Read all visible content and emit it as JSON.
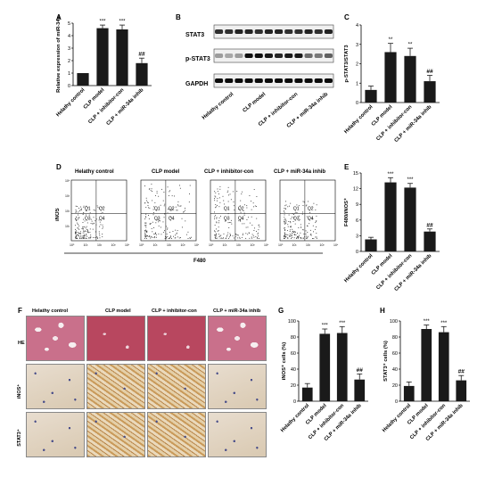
{
  "panel_letters": {
    "A": "A",
    "B": "B",
    "C": "C",
    "D": "D",
    "E": "E",
    "F": "F",
    "G": "G",
    "H": "H"
  },
  "groups": [
    "Helathy control",
    "CLP model",
    "CLP + inhibitor-con",
    "CLP + miR-34a inhib"
  ],
  "western_blot": {
    "bands": [
      "STAT3",
      "p-STAT3",
      "GAPDH"
    ],
    "lanes": 12
  },
  "flow": {
    "titles": [
      "Helathy control",
      "CLP model",
      "CLP + inhibitor-con",
      "CLP + miR-34a inhib"
    ],
    "y_label": "iNOS",
    "x_label": "F480",
    "quadrants": [
      "Q1",
      "Q2",
      "Q3",
      "Q4"
    ],
    "ticks": [
      "10⁰",
      "10¹",
      "10²",
      "10³",
      "10⁴"
    ]
  },
  "histology": {
    "col_titles": [
      "Helathy control",
      "CLP model",
      "CLP + inhibitor-con",
      "CLP + miR-34a inhib"
    ],
    "row_labels": [
      "HE",
      "iNOS⁺",
      "STAT3⁺"
    ]
  },
  "chart_data": [
    {
      "id": "A",
      "type": "bar",
      "categories": [
        "Helathy control",
        "CLP model",
        "CLP + inhibitor-con",
        "CLP + miR-34a inhib"
      ],
      "values": [
        1.0,
        4.6,
        4.5,
        1.8
      ],
      "errors": [
        0,
        0.25,
        0.35,
        0.4
      ],
      "annotations": [
        "",
        "***",
        "***",
        "##"
      ],
      "ylabel": "Relative expression of miR-34a",
      "ylim": [
        0,
        5
      ],
      "yticks": [
        0,
        1,
        2,
        3,
        4,
        5
      ]
    },
    {
      "id": "C",
      "type": "bar",
      "categories": [
        "Helathy control",
        "CLP model",
        "CLP + inhibitor-con",
        "CLP + miR-34a inhib"
      ],
      "values": [
        0.65,
        2.6,
        2.4,
        1.1
      ],
      "errors": [
        0.2,
        0.45,
        0.4,
        0.3
      ],
      "annotations": [
        "",
        "**",
        "**",
        "##"
      ],
      "ylabel": "p-STAT3/STAT3",
      "ylim": [
        0,
        4
      ],
      "yticks": [
        0,
        1,
        2,
        3,
        4
      ]
    },
    {
      "id": "E",
      "type": "bar",
      "categories": [
        "Helathy control",
        "CLP model",
        "CLP + inhibitor-con",
        "CLP + miR-34a inhib"
      ],
      "values": [
        2.3,
        13.2,
        12.2,
        3.8
      ],
      "errors": [
        0.4,
        0.9,
        0.8,
        0.5
      ],
      "annotations": [
        "",
        "***",
        "***",
        "##"
      ],
      "ylabel": "F480/iNOS⁺",
      "ylim": [
        0,
        15
      ],
      "yticks": [
        0,
        3,
        6,
        9,
        12,
        15
      ]
    },
    {
      "id": "G",
      "type": "bar",
      "categories": [
        "Helathy control",
        "CLP model",
        "CLP + inhibitor-con",
        "CLP + miR-34a inhib"
      ],
      "values": [
        17,
        84,
        85,
        27
      ],
      "errors": [
        5,
        6,
        8,
        7
      ],
      "annotations": [
        "",
        "***",
        "***",
        "##"
      ],
      "ylabel": "iNOS⁺ cells (%)",
      "ylim": [
        0,
        100
      ],
      "yticks": [
        0,
        20,
        40,
        60,
        80,
        100
      ]
    },
    {
      "id": "H",
      "type": "bar",
      "categories": [
        "Helathy control",
        "CLP model",
        "CLP + inhibitor-con",
        "CLP + miR-34a inhib"
      ],
      "values": [
        19,
        90,
        86,
        26
      ],
      "errors": [
        5,
        5,
        7,
        6
      ],
      "annotations": [
        "",
        "***",
        "***",
        "##"
      ],
      "ylabel": "STAT3⁺ cells (%)",
      "ylim": [
        0,
        100
      ],
      "yticks": [
        0,
        20,
        40,
        60,
        80,
        100
      ]
    }
  ]
}
